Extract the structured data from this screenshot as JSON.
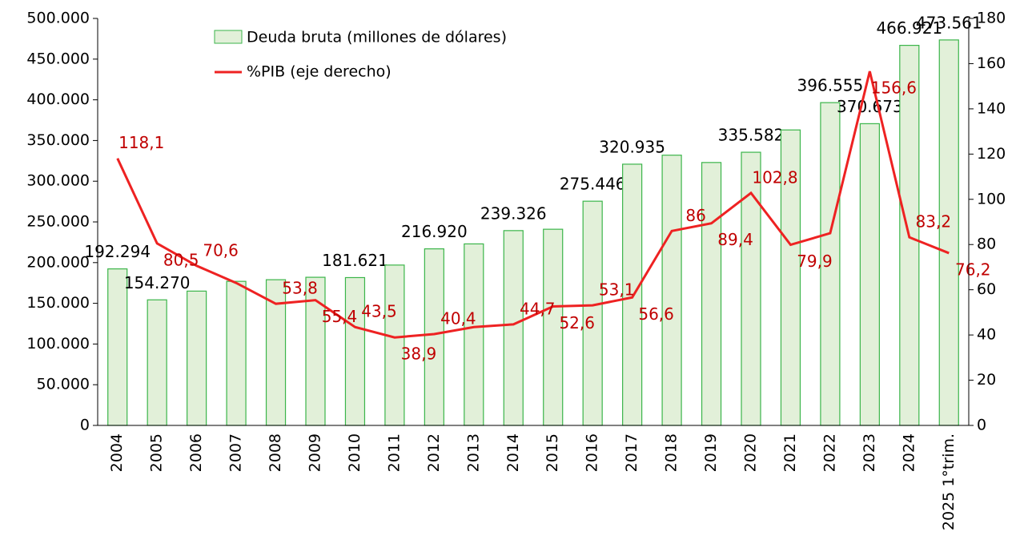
{
  "chart_data": {
    "type": "bar_line",
    "categories": [
      "2004",
      "2005",
      "2006",
      "2007",
      "2008",
      "2009",
      "2010",
      "2011",
      "2012",
      "2013",
      "2014",
      "2015",
      "2016",
      "2017",
      "2018",
      "2019",
      "2020",
      "2021",
      "2022",
      "2023",
      "2024",
      "2025 1°trim."
    ],
    "series": [
      {
        "name": "Deuda bruta (millones de dólares)",
        "type": "bar",
        "color": "#e2f0d9",
        "edge": "#3bb54a",
        "values": [
          192294,
          154270,
          165000,
          177000,
          179000,
          182000,
          181621,
          197000,
          216920,
          223000,
          239326,
          241000,
          275446,
          320935,
          332000,
          323000,
          335582,
          363000,
          396555,
          370673,
          466921,
          473561
        ],
        "value_labels": [
          "192.294",
          "154.270",
          null,
          null,
          null,
          null,
          "181.621",
          null,
          "216.920",
          null,
          "239.326",
          null,
          "275.446",
          "320.935",
          null,
          null,
          "335.582",
          null,
          "396.555",
          "370.673",
          "466.921",
          "473.561"
        ]
      },
      {
        "name": "%PIB (eje derecho)",
        "type": "line",
        "axis": "y2",
        "color": "#ee2222",
        "values": [
          118.1,
          80.5,
          70.6,
          63,
          53.8,
          55.4,
          43.5,
          38.9,
          40.4,
          43.5,
          44.7,
          52.6,
          53.1,
          56.6,
          86,
          89.4,
          102.8,
          79.9,
          85,
          156.6,
          83.2,
          76.2
        ],
        "value_labels": [
          "118,1",
          "80,5",
          "70,6",
          null,
          "53,8",
          "55,4",
          "43,5",
          "38,9",
          "40,4",
          null,
          "44,7",
          "52,6",
          "53,1",
          "56,6",
          "86",
          "89,4",
          "102,8",
          "79,9",
          null,
          "156,6",
          "83,2",
          "76,2"
        ]
      }
    ],
    "ylim": [
      0,
      500000
    ],
    "yticks": [
      0,
      {
        "value": 50000,
        "label": "50.000"
      },
      {
        "value": 100000,
        "label": "100.000"
      },
      {
        "value": 150000,
        "label": "150.000"
      },
      {
        "value": 200000,
        "label": "200.000"
      },
      {
        "value": 250000,
        "label": "250.000"
      },
      {
        "value": 300000,
        "label": "300.000"
      },
      {
        "value": 350000,
        "label": "350.000"
      },
      {
        "value": 400000,
        "label": "400.000"
      },
      {
        "value": 450000,
        "label": "450.000"
      },
      {
        "value": 500000,
        "label": "500.000"
      }
    ],
    "y2lim": [
      0,
      180
    ],
    "y2ticks": [
      0,
      20,
      40,
      60,
      80,
      100,
      120,
      140,
      160,
      180
    ],
    "legend": "top-left"
  }
}
